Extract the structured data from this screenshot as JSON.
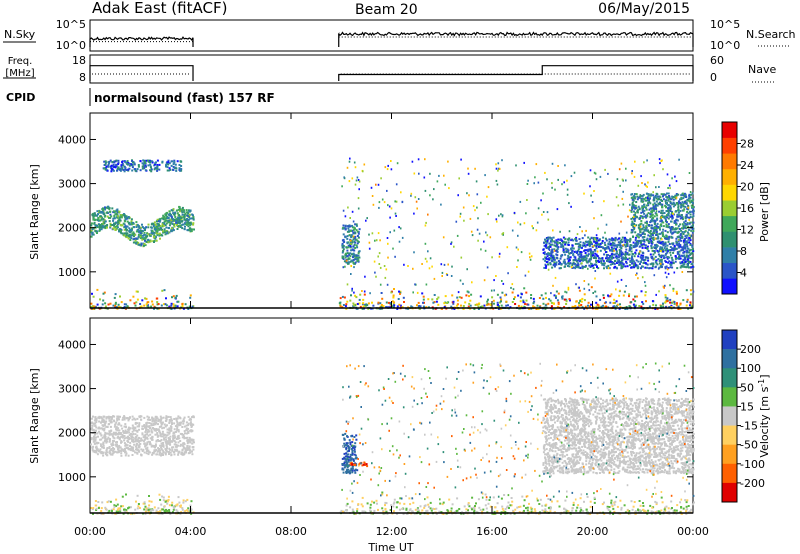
{
  "header": {
    "station": "Adak East (fitACF)",
    "beam": "Beam 20",
    "date": "06/May/2015",
    "cpid_label": "CPID",
    "cpid_text": "normalsound (fast) 157 RF"
  },
  "nsky_panel": {
    "left_label": "N.Sky",
    "left_ticks": [
      "10^5",
      "10^0"
    ],
    "right_label": "N.Search",
    "right_ticks": [
      "10^5",
      "10^0"
    ],
    "segments": [
      {
        "start": 0.0,
        "end": 4.1,
        "level": 0.4
      },
      {
        "start": 9.9,
        "end": 24.0,
        "level": 0.55
      }
    ]
  },
  "freq_panel": {
    "left_label_top": "Freq.",
    "left_label_bottom": "[MHz]",
    "left_ticks": [
      "18",
      "8"
    ],
    "right_label": "Nave",
    "right_ticks": [
      "60",
      "0"
    ],
    "freq_segments": [
      {
        "start": 0.0,
        "end": 4.1,
        "mhz": 14.5
      },
      {
        "start": 9.9,
        "end": 18.0,
        "mhz": 10.5
      },
      {
        "start": 18.0,
        "end": 24.0,
        "mhz": 14.5
      }
    ],
    "nave_level_fraction": 0.25
  },
  "power_colorbar": {
    "label": "Power [dB]",
    "ticks": [
      "28",
      "24",
      "20",
      "16",
      "12",
      "8",
      "4"
    ],
    "colors": [
      "#1010ff",
      "#2a55c8",
      "#2f7fa8",
      "#2f9070",
      "#40a85a",
      "#9acd32",
      "#ffd700",
      "#ffb000",
      "#ff7a00",
      "#ff4000",
      "#e80000"
    ]
  },
  "velocity_colorbar": {
    "label": "Velocity [m s",
    "label_sup": "-1",
    "label_end": "]",
    "ticks": [
      "200",
      "100",
      "50",
      "15",
      "-15",
      "-50",
      "-100",
      "-200"
    ],
    "colors": [
      "#2040c0",
      "#2f70a0",
      "#2f9078",
      "#5cb840",
      "#c8c8c8",
      "#ffd060",
      "#ffa020",
      "#ff6000",
      "#e00000"
    ]
  },
  "chart_data": {
    "type": "heatmap",
    "title": "Adak East (fitACF)",
    "xlabel": "Time UT",
    "ylabel": "Slant Range [km]",
    "x_ticks": [
      "00:00",
      "04:00",
      "08:00",
      "12:00",
      "16:00",
      "20:00",
      "00:00"
    ],
    "xlim_hours": [
      0,
      24
    ],
    "y_ticks": [
      1000,
      2000,
      3000,
      4000
    ],
    "ylim_km": [
      180,
      4600
    ],
    "data_gaps_hours": [
      [
        4.1,
        9.9
      ]
    ],
    "power_features": [
      {
        "t_start": 0.0,
        "t_end": 4.1,
        "r_min": 1700,
        "r_max": 2400,
        "power_db": 10
      },
      {
        "t_start": 0.5,
        "t_end": 3.6,
        "r_min": 3300,
        "r_max": 3550,
        "power_db": 6
      },
      {
        "t_start": 10.0,
        "t_end": 10.7,
        "r_min": 1200,
        "r_max": 2100,
        "power_db": 8
      },
      {
        "t_start": 18.0,
        "t_end": 24.0,
        "r_min": 1100,
        "r_max": 1800,
        "power_db": 6
      },
      {
        "t_start": 21.5,
        "t_end": 24.0,
        "r_min": 1800,
        "r_max": 2800,
        "power_db": 8
      }
    ],
    "velocity_features": [
      {
        "t_start": 0.0,
        "t_end": 4.1,
        "r_min": 1500,
        "r_max": 2400,
        "velocity": 0
      },
      {
        "t_start": 10.0,
        "t_end": 10.6,
        "r_min": 1100,
        "r_max": 2000,
        "velocity": 150
      },
      {
        "t_start": 10.3,
        "t_end": 11.0,
        "r_min": 1250,
        "r_max": 1350,
        "velocity": -150
      },
      {
        "t_start": 18.0,
        "t_end": 24.0,
        "r_min": 1100,
        "r_max": 2800,
        "velocity": 0
      }
    ]
  }
}
